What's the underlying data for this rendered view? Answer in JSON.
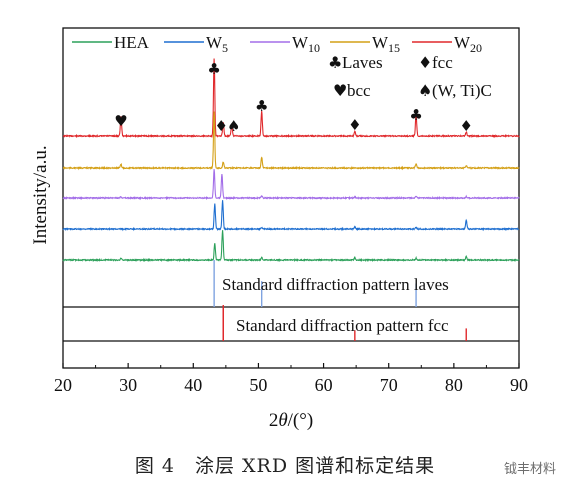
{
  "chart_data": {
    "type": "line",
    "xlabel_prefix": "2",
    "xlabel_var": "θ",
    "xlabel_unit": "/(°)",
    "ylabel": "Intensity/a.u.",
    "xlim": [
      20,
      90
    ],
    "xticks": [
      20,
      30,
      40,
      50,
      60,
      70,
      80,
      90
    ],
    "legend": [
      {
        "base": "HEA",
        "sub": "",
        "color": "#2ca05a"
      },
      {
        "base": "W",
        "sub": "5",
        "color": "#1f6fd0"
      },
      {
        "base": "W",
        "sub": "10",
        "color": "#a36ee8"
      },
      {
        "base": "W",
        "sub": "15",
        "color": "#d4a017"
      },
      {
        "base": "W",
        "sub": "20",
        "color": "#e0282b"
      }
    ],
    "series": [
      {
        "name": "W20",
        "color": "#e0282b",
        "peaks": [
          [
            28.9,
            0.25
          ],
          [
            43.2,
            1.0
          ],
          [
            44.6,
            0.18
          ],
          [
            45.9,
            0.15
          ],
          [
            50.5,
            0.32
          ],
          [
            64.8,
            0.06
          ],
          [
            74.2,
            0.27
          ],
          [
            81.9,
            0.05
          ]
        ]
      },
      {
        "name": "W15",
        "color": "#d4a017",
        "peaks": [
          [
            28.9,
            0.06
          ],
          [
            43.2,
            0.95
          ],
          [
            44.6,
            0.1
          ],
          [
            50.5,
            0.18
          ],
          [
            74.2,
            0.07
          ],
          [
            81.9,
            0.04
          ]
        ]
      },
      {
        "name": "W10",
        "color": "#a36ee8",
        "peaks": [
          [
            28.9,
            0.05
          ],
          [
            43.2,
            0.95
          ],
          [
            44.4,
            0.8
          ],
          [
            50.5,
            0.06
          ],
          [
            64.8,
            0.04
          ],
          [
            74.2,
            0.05
          ],
          [
            81.9,
            0.05
          ]
        ]
      },
      {
        "name": "W5",
        "color": "#1f6fd0",
        "peaks": [
          [
            43.3,
            0.85
          ],
          [
            44.5,
            0.95
          ],
          [
            50.5,
            0.05
          ],
          [
            64.8,
            0.07
          ],
          [
            74.2,
            0.05
          ],
          [
            81.9,
            0.3
          ]
        ]
      },
      {
        "name": "HEA",
        "color": "#2ca05a",
        "peaks": [
          [
            28.9,
            0.05
          ],
          [
            43.3,
            0.55
          ],
          [
            44.5,
            1.0
          ],
          [
            50.5,
            0.08
          ],
          [
            64.8,
            0.08
          ],
          [
            74.2,
            0.06
          ],
          [
            81.9,
            0.12
          ]
        ]
      }
    ],
    "markers": [
      {
        "symbol": "♥",
        "x": 28.9,
        "kind": "bcc"
      },
      {
        "symbol": "♣",
        "x": 43.2,
        "kind": "laves"
      },
      {
        "symbol": "♦",
        "x": 44.6,
        "kind": "fcc"
      },
      {
        "symbol": "♠",
        "x": 45.9,
        "kind": "carbide"
      },
      {
        "symbol": "♣",
        "x": 50.5,
        "kind": "laves"
      },
      {
        "symbol": "♦",
        "x": 64.8,
        "kind": "fcc"
      },
      {
        "symbol": "♣",
        "x": 74.2,
        "kind": "laves"
      },
      {
        "symbol": "♦",
        "x": 81.9,
        "kind": "fcc"
      }
    ],
    "phase_key": [
      {
        "symbol": "♣",
        "label": "Laves"
      },
      {
        "symbol": "♦",
        "label": "fcc"
      },
      {
        "symbol": "♥",
        "label": "bcc"
      },
      {
        "symbol": "♠",
        "label": "(W, Ti)C"
      }
    ],
    "standards": [
      {
        "label": "Standard diffraction pattern laves",
        "color": "#7fa3e0",
        "lines": [
          [
            43.2,
            1.0
          ],
          [
            50.5,
            0.55
          ],
          [
            74.2,
            0.5
          ]
        ]
      },
      {
        "label": "Standard diffraction pattern fcc",
        "color": "#e0282b",
        "lines": [
          [
            44.6,
            1.0
          ],
          [
            64.8,
            0.3
          ],
          [
            81.9,
            0.35
          ]
        ]
      }
    ]
  },
  "caption": "图 4　涂层 XRD 图谱和标定结果",
  "watermark": "钺丰材料"
}
